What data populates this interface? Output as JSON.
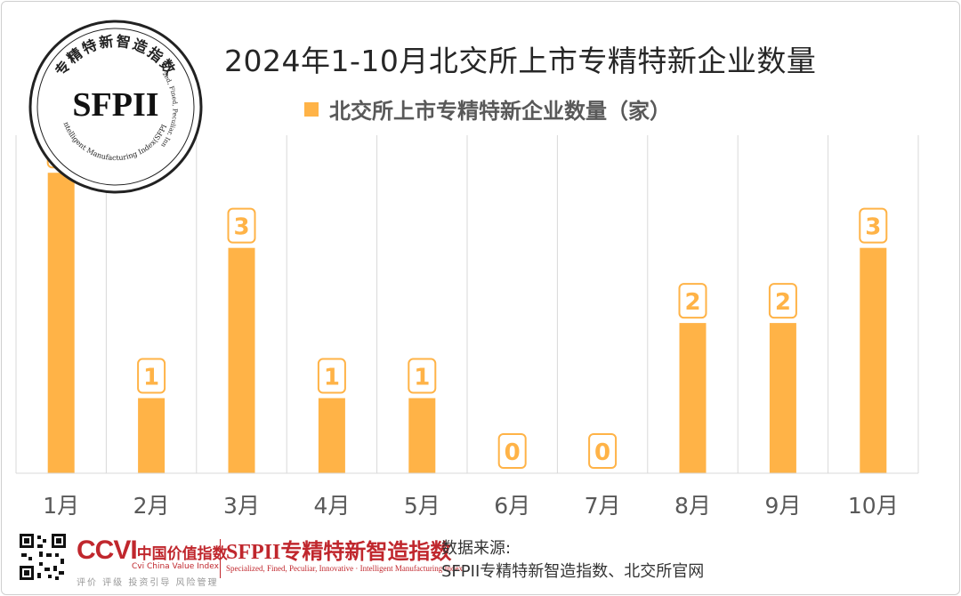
{
  "chart_data": {
    "type": "bar",
    "title": "2024年1-10月北交所上市专精特新企业数量",
    "series": [
      {
        "name": "北交所上市专精特新企业数量（家）",
        "values": [
          4,
          1,
          3,
          1,
          1,
          0,
          0,
          2,
          2,
          3
        ]
      }
    ],
    "categories": [
      "1月",
      "2月",
      "3月",
      "4月",
      "5月",
      "6月",
      "7月",
      "8月",
      "9月",
      "10月"
    ],
    "ylim": [
      0,
      4.5
    ],
    "grid": "vertical",
    "legend": "top-center",
    "bar_color": "#FFB347",
    "data_labels": true
  },
  "seal": {
    "center_text": "SFPII",
    "ring_text_top": "专精特新智造指数",
    "ring_text_side": "Specialized, Fined, Peculiar, Innovative",
    "ring_text_bottom": "Intelligent Manufacturing Index(SFPII)"
  },
  "footer": {
    "qr_icon": "qr-code-icon",
    "ccvi_abbr": "CCVI",
    "ccvi_cn": "中国价值指数",
    "ccvi_en": "Cvi China Value Index",
    "ccvi_sub": "评价 评级 投资引导 风险管理",
    "sfpii_title": "SFPII专精特新智造指数",
    "sfpii_sub": "Specialized, Fined, Peculiar, Innovative · Intelligent Manufacturing Index",
    "source_label": "数据来源:",
    "source_text": "SFPII专精特新智造指数、北交所官网",
    "brand_color": "#c0272d"
  }
}
